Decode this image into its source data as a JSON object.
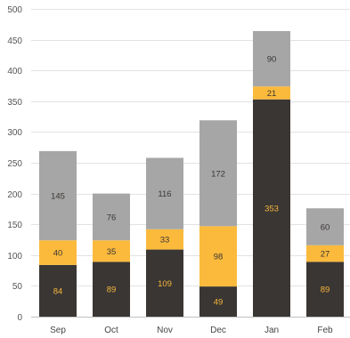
{
  "chart_data": {
    "type": "bar",
    "stacked": true,
    "categories": [
      "Sep",
      "Oct",
      "Nov",
      "Dec",
      "Jan",
      "Feb"
    ],
    "series": [
      {
        "values": [
          84,
          89,
          109,
          49,
          353,
          89
        ],
        "color": "#3a3634",
        "label_color": "#f5b63a"
      },
      {
        "values": [
          40,
          35,
          33,
          98,
          21,
          27
        ],
        "color": "#fbba3c",
        "label_color": "#3a3634"
      },
      {
        "values": [
          145,
          76,
          116,
          172,
          90,
          60
        ],
        "color": "#a6a6a6",
        "label_color": "#3a3634"
      }
    ],
    "ylim": [
      0,
      500
    ],
    "yticks": [
      0,
      50,
      100,
      150,
      200,
      250,
      300,
      350,
      400,
      450,
      500
    ],
    "grid": true,
    "legend": "none",
    "title": "",
    "xlabel": "",
    "ylabel": ""
  }
}
